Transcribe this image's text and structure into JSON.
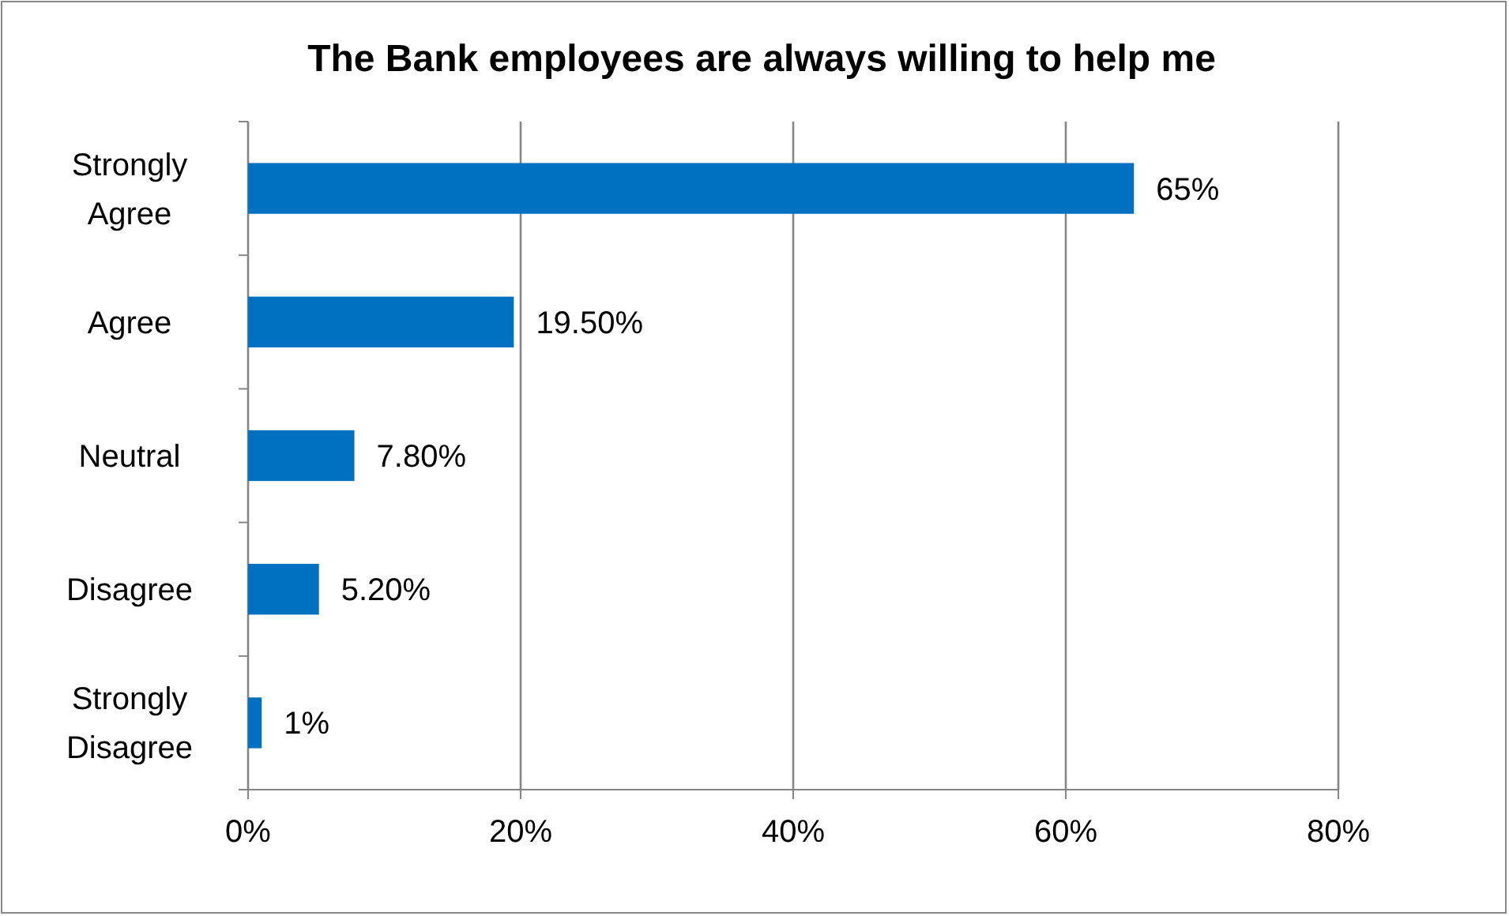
{
  "chart_data": {
    "type": "bar",
    "orientation": "horizontal",
    "title": "The Bank employees are always willing to help me",
    "categories": [
      "Strongly Agree",
      "Agree",
      "Neutral",
      "Disagree",
      "Strongly Disagree"
    ],
    "values": [
      65,
      19.5,
      7.8,
      5.2,
      1
    ],
    "value_labels": [
      "65%",
      "19.50%",
      "7.80%",
      "5.20%",
      "1%"
    ],
    "color": "#0070c0",
    "xlim": [
      0,
      80
    ],
    "xticks": [
      {
        "value": 0,
        "label": "0%"
      },
      {
        "value": 20,
        "label": "20%"
      },
      {
        "value": 40,
        "label": "40%"
      },
      {
        "value": 60,
        "label": "60%"
      },
      {
        "value": 80,
        "label": "80%"
      }
    ],
    "grid": "x"
  }
}
